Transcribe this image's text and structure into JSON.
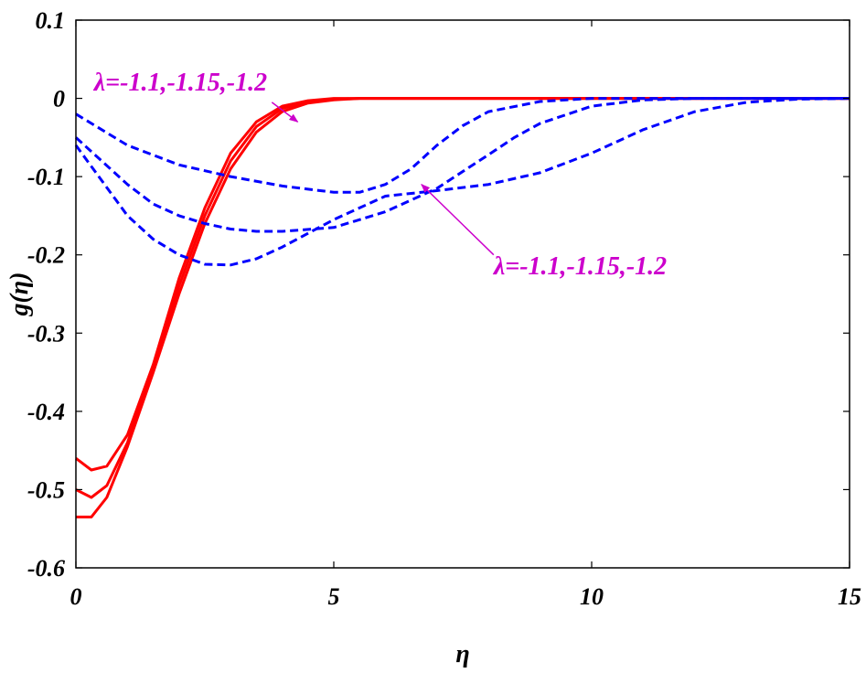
{
  "chart_data": {
    "type": "line",
    "xlabel": "η",
    "ylabel": "g(η)",
    "xlim": [
      0,
      15
    ],
    "ylim": [
      -0.6,
      0.1
    ],
    "xticks": [
      0,
      5,
      10,
      15
    ],
    "yticks": [
      0.1,
      0,
      -0.1,
      -0.2,
      -0.3,
      -0.4,
      -0.5,
      -0.6
    ],
    "ytick_labels": [
      "0.1",
      "0",
      "-0.1",
      "-0.2",
      "-0.3",
      "-0.4",
      "-0.5",
      "-0.6"
    ],
    "grid": false,
    "series": [
      {
        "style": "solid",
        "color": "#ff0000",
        "x": [
          0,
          0.3,
          0.6,
          1,
          1.5,
          2,
          2.5,
          3,
          3.5,
          4,
          4.5,
          5,
          5.5,
          6,
          7,
          8,
          10,
          12,
          15
        ],
        "y": [
          -0.46,
          -0.475,
          -0.47,
          -0.43,
          -0.34,
          -0.23,
          -0.14,
          -0.07,
          -0.03,
          -0.01,
          -0.003,
          0,
          0,
          0,
          0,
          0,
          0,
          0,
          0
        ]
      },
      {
        "style": "solid",
        "color": "#ff0000",
        "x": [
          0,
          0.3,
          0.6,
          1,
          1.5,
          2,
          2.5,
          3,
          3.5,
          4,
          4.5,
          5,
          5.5,
          6,
          7,
          8,
          10,
          12,
          15
        ],
        "y": [
          -0.5,
          -0.51,
          -0.495,
          -0.44,
          -0.345,
          -0.24,
          -0.15,
          -0.08,
          -0.036,
          -0.013,
          -0.004,
          -0.001,
          0,
          0,
          0,
          0,
          0,
          0,
          0
        ]
      },
      {
        "style": "solid",
        "color": "#ff0000",
        "x": [
          0,
          0.3,
          0.6,
          1,
          1.5,
          2,
          2.5,
          3,
          3.5,
          4,
          4.5,
          5,
          5.5,
          6,
          7,
          8,
          10,
          12,
          15
        ],
        "y": [
          -0.535,
          -0.535,
          -0.51,
          -0.445,
          -0.35,
          -0.25,
          -0.16,
          -0.09,
          -0.043,
          -0.017,
          -0.006,
          -0.002,
          0,
          0,
          0,
          0,
          0,
          0,
          0
        ]
      },
      {
        "style": "dashed",
        "color": "#0000ff",
        "x": [
          0,
          0.5,
          1,
          2,
          3,
          4,
          5,
          5.5,
          6,
          6.5,
          7,
          7.5,
          8,
          9,
          10,
          12,
          15
        ],
        "y": [
          -0.02,
          -0.04,
          -0.06,
          -0.085,
          -0.1,
          -0.112,
          -0.12,
          -0.12,
          -0.11,
          -0.09,
          -0.06,
          -0.035,
          -0.017,
          -0.004,
          0,
          0,
          0
        ]
      },
      {
        "style": "dashed",
        "color": "#0000ff",
        "x": [
          0,
          0.5,
          1,
          1.5,
          2,
          2.5,
          3,
          3.5,
          4,
          5,
          6,
          7,
          8,
          8.5,
          9,
          10,
          11,
          12,
          15
        ],
        "y": [
          -0.05,
          -0.08,
          -0.11,
          -0.135,
          -0.15,
          -0.16,
          -0.167,
          -0.17,
          -0.17,
          -0.165,
          -0.145,
          -0.115,
          -0.072,
          -0.05,
          -0.032,
          -0.01,
          -0.002,
          0,
          0
        ]
      },
      {
        "style": "dashed",
        "color": "#0000ff",
        "x": [
          0,
          0.5,
          1,
          1.5,
          2,
          2.5,
          3,
          3.5,
          4,
          5,
          6,
          7,
          8,
          9,
          10,
          11,
          12,
          13,
          14,
          15
        ],
        "y": [
          -0.06,
          -0.105,
          -0.15,
          -0.18,
          -0.2,
          -0.212,
          -0.213,
          -0.205,
          -0.19,
          -0.155,
          -0.125,
          -0.118,
          -0.11,
          -0.095,
          -0.07,
          -0.04,
          -0.017,
          -0.005,
          -0.001,
          0
        ]
      }
    ],
    "annotations": [
      {
        "text": "λ=-1.1,-1.15,-1.2",
        "color": "#cc00cc",
        "x": 0.35,
        "y": 0.01,
        "arrow_from": [
          3.8,
          -0.005
        ],
        "arrow_to": [
          4.3,
          -0.03
        ]
      },
      {
        "text": "λ=-1.1,-1.15,-1.2",
        "color": "#cc00cc",
        "x": 8.1,
        "y": -0.225,
        "arrow_from": [
          8.1,
          -0.2
        ],
        "arrow_to": [
          6.7,
          -0.11
        ]
      }
    ]
  }
}
